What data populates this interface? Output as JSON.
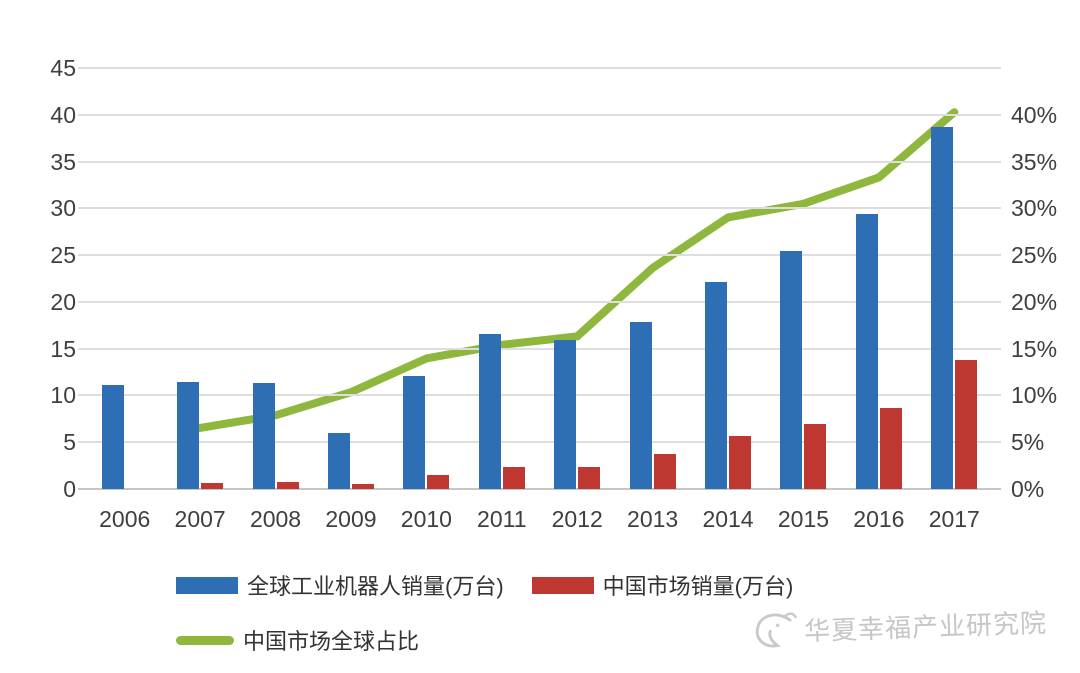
{
  "chart_data": {
    "type": "combo-bar-line",
    "title": "",
    "categories": [
      "2006",
      "2007",
      "2008",
      "2009",
      "2010",
      "2011",
      "2012",
      "2013",
      "2014",
      "2015",
      "2016",
      "2017"
    ],
    "series": [
      {
        "name": "全球工业机器人销量(万台)",
        "type": "bar",
        "axis": "left",
        "color": "#2D6EB4",
        "values": [
          11.1,
          11.4,
          11.3,
          6.0,
          12.1,
          16.6,
          15.9,
          17.8,
          22.1,
          25.4,
          29.4,
          38.7
        ]
      },
      {
        "name": "中国市场销量(万台)",
        "type": "bar",
        "axis": "left",
        "color": "#BE3730",
        "values": [
          null,
          0.6,
          0.8,
          0.55,
          1.5,
          2.3,
          2.3,
          3.7,
          5.7,
          6.9,
          8.7,
          13.8
        ]
      },
      {
        "name": "中国市场全球占比",
        "type": "line",
        "axis": "right",
        "color": "#8FB73D",
        "values_pct": [
          null,
          5.8,
          7.0,
          9.2,
          12.4,
          13.7,
          14.5,
          21.0,
          25.8,
          27.1,
          29.6,
          35.8
        ]
      }
    ],
    "left_axis": {
      "min": 0,
      "max": 45,
      "step": 5,
      "ticks": [
        "0",
        "5",
        "10",
        "15",
        "20",
        "25",
        "30",
        "35",
        "40",
        "45"
      ]
    },
    "right_axis": {
      "min": 0,
      "max": 40,
      "step": 5,
      "ticks": [
        "0%",
        "5%",
        "10%",
        "15%",
        "20%",
        "25%",
        "30%",
        "35%",
        "40%"
      ]
    },
    "grid": "horizontal",
    "gridline_color": "#DEDEDE",
    "axis_text_color": "#3F3F3F",
    "legend_position": "bottom-left"
  },
  "watermark": {
    "text": "华夏幸福产业研究院",
    "logo": "bird-swirl-icon",
    "color": "#C6C6C6"
  }
}
